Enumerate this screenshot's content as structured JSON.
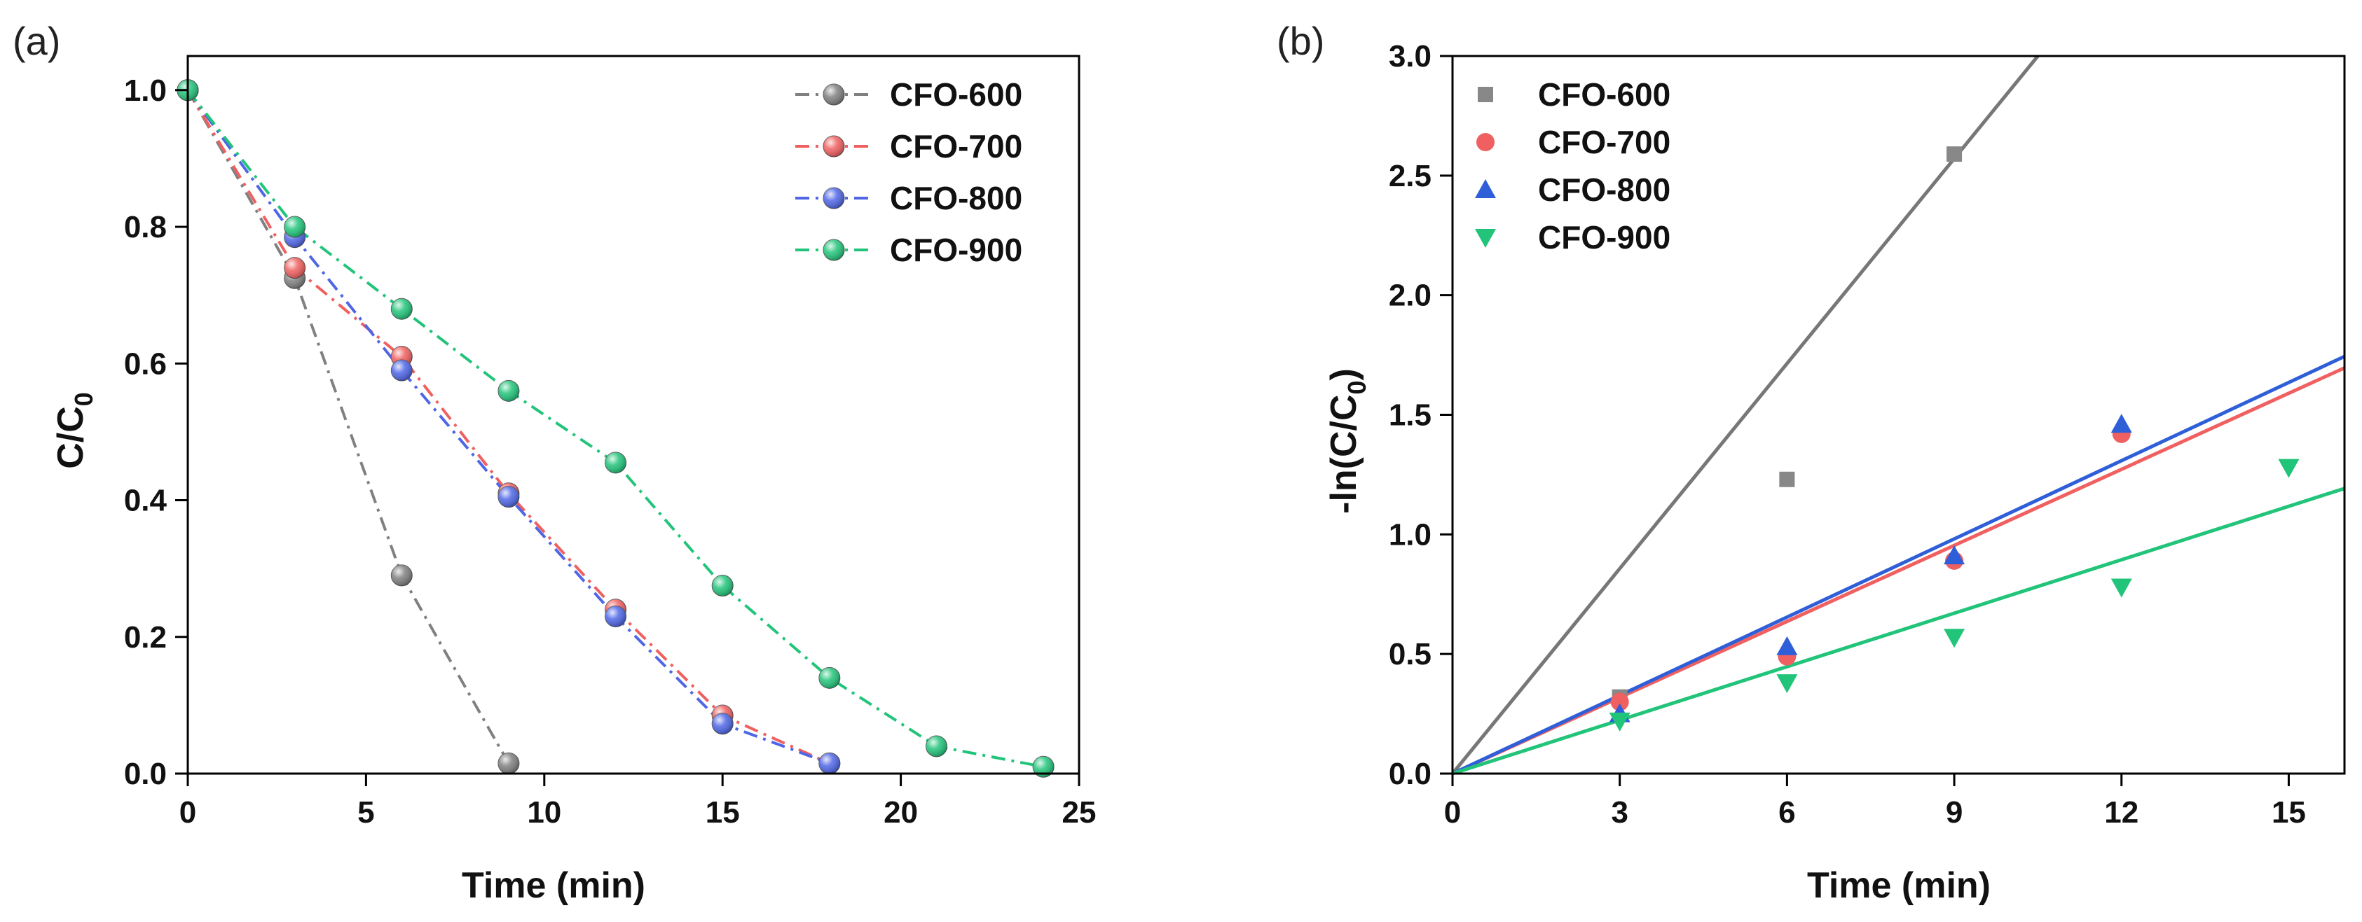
{
  "chart_data": [
    {
      "panel_label": "(a)",
      "type": "line",
      "xlabel": "Time (min)",
      "ylabel_main": "C/C",
      "ylabel_sub": "0",
      "xlim": [
        0,
        25
      ],
      "ylim": [
        0,
        1.05
      ],
      "xticks": [
        "0",
        "5",
        "10",
        "15",
        "20",
        "25"
      ],
      "yticks": [
        "0.0",
        "0.2",
        "0.4",
        "0.6",
        "0.8",
        "1.0"
      ],
      "legend_position": "top-right",
      "series": [
        {
          "name": "CFO-600",
          "color": "#808080",
          "x": [
            0,
            3,
            6,
            9
          ],
          "values": [
            1.0,
            0.725,
            0.29,
            0.015
          ]
        },
        {
          "name": "CFO-700",
          "color": "#f06060",
          "x": [
            0,
            3,
            6,
            9,
            12,
            15,
            18
          ],
          "values": [
            1.0,
            0.74,
            0.61,
            0.41,
            0.24,
            0.085,
            0.015
          ]
        },
        {
          "name": "CFO-800",
          "color": "#4f66e6",
          "x": [
            0,
            3,
            6,
            9,
            12,
            15,
            18
          ],
          "values": [
            1.0,
            0.785,
            0.59,
            0.405,
            0.23,
            0.073,
            0.015
          ]
        },
        {
          "name": "CFO-900",
          "color": "#22c47a",
          "x": [
            0,
            3,
            6,
            9,
            12,
            15,
            18,
            21,
            24
          ],
          "values": [
            1.0,
            0.8,
            0.68,
            0.56,
            0.455,
            0.275,
            0.14,
            0.04,
            0.01
          ]
        }
      ]
    },
    {
      "panel_label": "(b)",
      "type": "scatter",
      "xlabel": "Time (min)",
      "ylabel_main": "-ln(C/C",
      "ylabel_sub": "0",
      "ylabel_tail": ")",
      "xlim": [
        0,
        16
      ],
      "ylim": [
        0,
        3.0
      ],
      "xticks": [
        "0",
        "3",
        "6",
        "9",
        "12",
        "15"
      ],
      "yticks": [
        "0.0",
        "0.5",
        "1.0",
        "1.5",
        "2.0",
        "2.5",
        "3.0"
      ],
      "legend_position": "top-left",
      "series": [
        {
          "name": "CFO-600",
          "color": "#888888",
          "marker": "square",
          "x": [
            3,
            6,
            9
          ],
          "values": [
            0.32,
            1.23,
            2.59
          ],
          "fit_slope": 0.2857
        },
        {
          "name": "CFO-700",
          "color": "#f06060",
          "marker": "circle",
          "x": [
            3,
            6,
            9,
            12
          ],
          "values": [
            0.3,
            0.49,
            0.89,
            1.42
          ],
          "fit_slope": 0.106
        },
        {
          "name": "CFO-800",
          "color": "#2f5fd8",
          "marker": "triangle-up",
          "x": [
            3,
            6,
            9,
            12
          ],
          "values": [
            0.25,
            0.53,
            0.91,
            1.46
          ],
          "fit_slope": 0.109
        },
        {
          "name": "CFO-900",
          "color": "#22c47a",
          "marker": "triangle-down",
          "x": [
            3,
            6,
            9,
            12,
            15
          ],
          "values": [
            0.22,
            0.38,
            0.57,
            0.78,
            1.28
          ],
          "fit_slope": 0.0745
        }
      ]
    }
  ]
}
